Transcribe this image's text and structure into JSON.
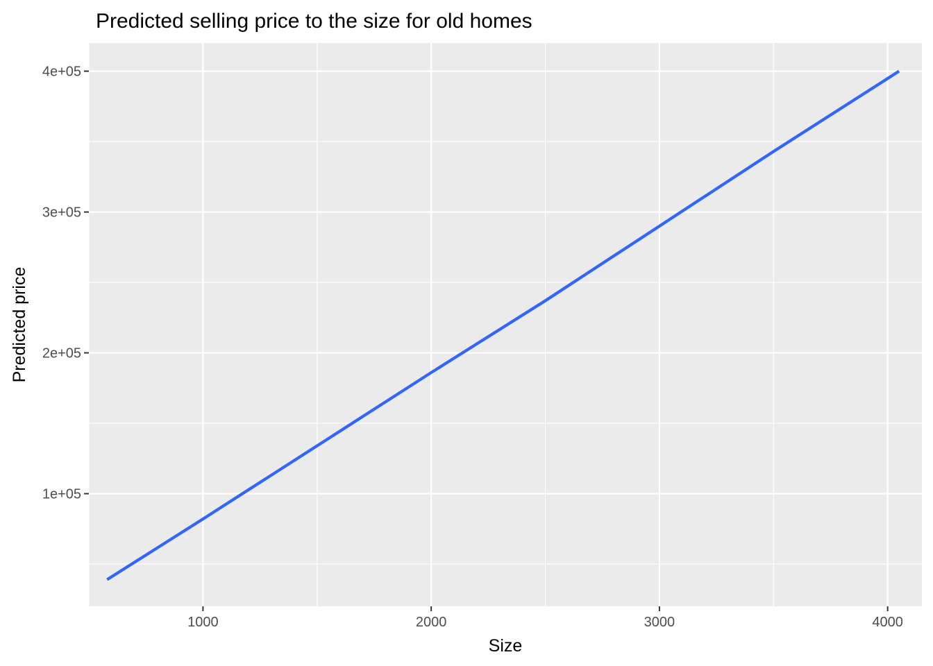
{
  "chart_data": {
    "type": "line",
    "title": "Predicted selling price to the size for old homes",
    "xlabel": "Size",
    "ylabel": "Predicted price",
    "xlim": [
      500,
      4150
    ],
    "ylim": [
      20000,
      420000
    ],
    "x_major_ticks": [
      1000,
      2000,
      3000,
      4000
    ],
    "x_minor_ticks": [
      500,
      1500,
      2500,
      3500
    ],
    "x_tick_labels": [
      "1000",
      "2000",
      "3000",
      "4000"
    ],
    "y_major_ticks": [
      100000,
      200000,
      300000,
      400000
    ],
    "y_minor_ticks": [
      50000,
      150000,
      250000,
      350000
    ],
    "y_tick_labels": [
      "1e+05",
      "2e+05",
      "3e+05",
      "4e+05"
    ],
    "grid": true,
    "legend": "none",
    "series": [
      {
        "color": "#3366ff",
        "x": [
          580,
          1000,
          1500,
          2000,
          2500,
          3000,
          3500,
          4050
        ],
        "values": [
          39000,
          82000,
          134000,
          186000,
          237000,
          290000,
          343000,
          400000
        ]
      }
    ]
  }
}
